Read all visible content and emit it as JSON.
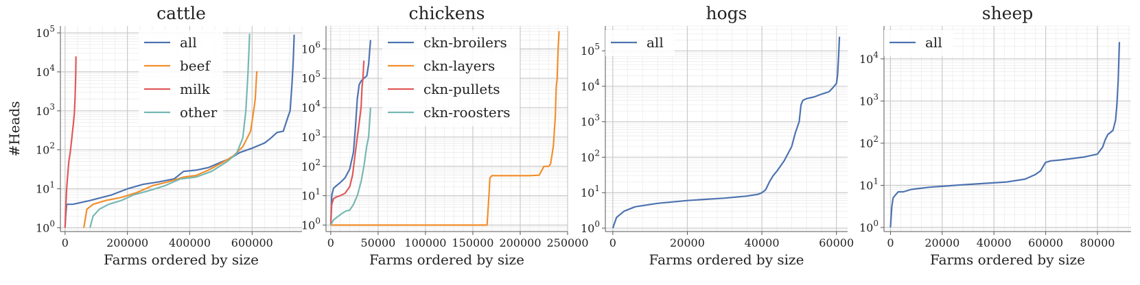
{
  "chart_data": [
    {
      "type": "line",
      "title": "cattle",
      "xlabel": "Farms ordered by size",
      "ylabel": "#Heads",
      "yscale": "log",
      "xlim": [
        -15000,
        760000
      ],
      "ylim": [
        0.8,
        150000
      ],
      "xticks": [
        0,
        200000,
        400000,
        600000
      ],
      "xtick_labels": [
        "0",
        "200000",
        "400000",
        "600000"
      ],
      "yticks": [
        1,
        10,
        100,
        1000,
        10000,
        100000
      ],
      "ytick_labels": [
        "10^0",
        "10^1",
        "10^2",
        "10^3",
        "10^4",
        "10^5"
      ],
      "grid": true,
      "legend_position": "top-center",
      "series": [
        {
          "name": "all",
          "color": "#4c72b0",
          "x": [
            0,
            2000,
            5000,
            25000,
            80000,
            150000,
            200000,
            250000,
            300000,
            350000,
            380000,
            420000,
            460000,
            500000,
            530000,
            560000,
            600000,
            640000,
            660000,
            680000,
            700000,
            715000,
            722000,
            728000,
            732000,
            735000
          ],
          "y": [
            1,
            2,
            4,
            4,
            5,
            7,
            10,
            13,
            15,
            18,
            28,
            30,
            35,
            48,
            60,
            85,
            110,
            150,
            200,
            280,
            300,
            700,
            1000,
            5000,
            20000,
            90000
          ]
        },
        {
          "name": "beef",
          "color": "#f28e2b",
          "x": [
            60000,
            70000,
            90000,
            130000,
            180000,
            230000,
            280000,
            330000,
            380000,
            420000,
            460000,
            500000,
            540000,
            570000,
            595000,
            605000,
            610000,
            615000,
            618000
          ],
          "y": [
            1,
            3,
            4,
            5,
            6,
            8,
            12,
            15,
            20,
            22,
            30,
            45,
            70,
            120,
            300,
            1000,
            2000,
            10000,
            10000
          ]
        },
        {
          "name": "milk",
          "color": "#e15759",
          "x": [
            0,
            2000,
            5000,
            8000,
            12000,
            16000,
            20000,
            24000,
            27000,
            30000,
            32000,
            34000,
            35000
          ],
          "y": [
            1,
            3,
            10,
            20,
            50,
            80,
            150,
            300,
            500,
            900,
            2000,
            8000,
            25000
          ]
        },
        {
          "name": "other",
          "color": "#76b7b2",
          "x": [
            80000,
            90000,
            110000,
            140000,
            180000,
            220000,
            270000,
            320000,
            370000,
            420000,
            470000,
            520000,
            550000,
            570000,
            580000,
            587000,
            592000
          ],
          "y": [
            1,
            2,
            3,
            4,
            5,
            7,
            9,
            12,
            18,
            20,
            28,
            50,
            80,
            200,
            1000,
            10000,
            95000
          ]
        }
      ]
    },
    {
      "type": "line",
      "title": "chickens",
      "xlabel": "Farms ordered by size",
      "ylabel": "",
      "yscale": "log",
      "xlim": [
        -5000,
        250000
      ],
      "ylim": [
        0.6,
        6000000
      ],
      "xticks": [
        0,
        50000,
        100000,
        150000,
        200000,
        250000
      ],
      "xtick_labels": [
        "0",
        "50000",
        "100000",
        "150000",
        "200000",
        "250000"
      ],
      "yticks": [
        1,
        10,
        100,
        1000,
        10000,
        100000,
        1000000
      ],
      "ytick_labels": [
        "10^0",
        "10^1",
        "10^2",
        "10^3",
        "10^4",
        "10^5",
        "10^6"
      ],
      "grid": true,
      "legend_position": "top-center",
      "series": [
        {
          "name": "ckn-broilers",
          "color": "#4c72b0",
          "x": [
            0,
            1000,
            3000,
            6000,
            10000,
            15000,
            20000,
            24000,
            26000,
            28000,
            30000,
            32000,
            35000,
            38000,
            40000,
            42000
          ],
          "y": [
            1,
            10,
            18,
            22,
            28,
            40,
            80,
            300,
            2000,
            20000,
            60000,
            80000,
            100000,
            120000,
            300000,
            2000000
          ]
        },
        {
          "name": "ckn-layers",
          "color": "#f28e2b",
          "x": [
            0,
            160000,
            165000,
            167000,
            168000,
            170000,
            210000,
            220000,
            225000,
            230000,
            232000,
            235000,
            237000,
            238000,
            239000,
            240000,
            241000
          ],
          "y": [
            1,
            1,
            1,
            10,
            40,
            48,
            48,
            50,
            100,
            100,
            120,
            500,
            5000,
            50000,
            100000,
            1000000,
            4000000
          ]
        },
        {
          "name": "ckn-pullets",
          "color": "#e15759",
          "x": [
            0,
            1000,
            3000,
            6000,
            10000,
            15000,
            20000,
            23000,
            26000,
            28000,
            30000,
            32000,
            33000,
            34000,
            35000
          ],
          "y": [
            1,
            5,
            8,
            9,
            10,
            12,
            20,
            50,
            300,
            1000,
            3000,
            10000,
            50000,
            100000,
            400000
          ]
        },
        {
          "name": "ckn-roosters",
          "color": "#76b7b2",
          "x": [
            0,
            3000,
            8000,
            12000,
            16000,
            20000,
            24000,
            28000,
            32000,
            35000,
            38000,
            40000,
            42000
          ],
          "y": [
            1,
            1.5,
            2,
            2.5,
            3,
            3.2,
            5,
            10,
            30,
            100,
            500,
            1000,
            10000
          ]
        }
      ]
    },
    {
      "type": "line",
      "title": "hogs",
      "xlabel": "Farms ordered by size",
      "ylabel": "",
      "yscale": "log",
      "xlim": [
        -2000,
        63000
      ],
      "ylim": [
        0.8,
        500000
      ],
      "xticks": [
        0,
        20000,
        40000,
        60000
      ],
      "xtick_labels": [
        "0",
        "20000",
        "40000",
        "60000"
      ],
      "yticks": [
        1,
        10,
        100,
        1000,
        10000,
        100000
      ],
      "ytick_labels": [
        "10^0",
        "10^1",
        "10^2",
        "10^3",
        "10^4",
        "10^5"
      ],
      "grid": true,
      "legend_position": "top-left",
      "series": [
        {
          "name": "all",
          "color": "#4c72b0",
          "x": [
            0,
            1000,
            3000,
            6000,
            12000,
            20000,
            30000,
            36000,
            39000,
            40000,
            41000,
            42000,
            43000,
            44000,
            46000,
            48000,
            49000,
            50000,
            50500,
            51000,
            52000,
            54000,
            56000,
            58000,
            59000,
            60000,
            60300,
            60600,
            60800
          ],
          "y": [
            1,
            2,
            3,
            4,
            5,
            6,
            7,
            8,
            9,
            10,
            12,
            20,
            30,
            40,
            80,
            200,
            500,
            1000,
            3000,
            4000,
            4500,
            5000,
            6000,
            7000,
            9000,
            12000,
            20000,
            80000,
            250000
          ]
        }
      ]
    },
    {
      "type": "line",
      "title": "sheep",
      "xlabel": "Farms ordered by size",
      "ylabel": "",
      "yscale": "log",
      "xlim": [
        -2500,
        93000
      ],
      "ylim": [
        0.8,
        60000
      ],
      "xticks": [
        0,
        20000,
        40000,
        60000,
        80000
      ],
      "xtick_labels": [
        "0",
        "20000",
        "40000",
        "60000",
        "80000"
      ],
      "yticks": [
        1,
        10,
        100,
        1000,
        10000
      ],
      "ytick_labels": [
        "10^0",
        "10^1",
        "10^2",
        "10^3",
        "10^4"
      ],
      "grid": true,
      "legend_position": "top-left",
      "series": [
        {
          "name": "all",
          "color": "#4c72b0",
          "x": [
            0,
            500,
            1000,
            2000,
            3000,
            5000,
            8000,
            15000,
            25000,
            35000,
            45000,
            52000,
            56000,
            58000,
            59000,
            60000,
            62000,
            66000,
            70000,
            75000,
            80000,
            82000,
            83000,
            84000,
            86000,
            87000,
            87500,
            88000,
            88500
          ],
          "y": [
            1,
            3,
            5,
            6,
            7,
            7,
            8,
            9,
            10,
            11,
            12,
            14,
            18,
            22,
            28,
            35,
            38,
            40,
            43,
            47,
            55,
            80,
            120,
            160,
            200,
            350,
            800,
            3000,
            25000
          ]
        }
      ]
    }
  ]
}
